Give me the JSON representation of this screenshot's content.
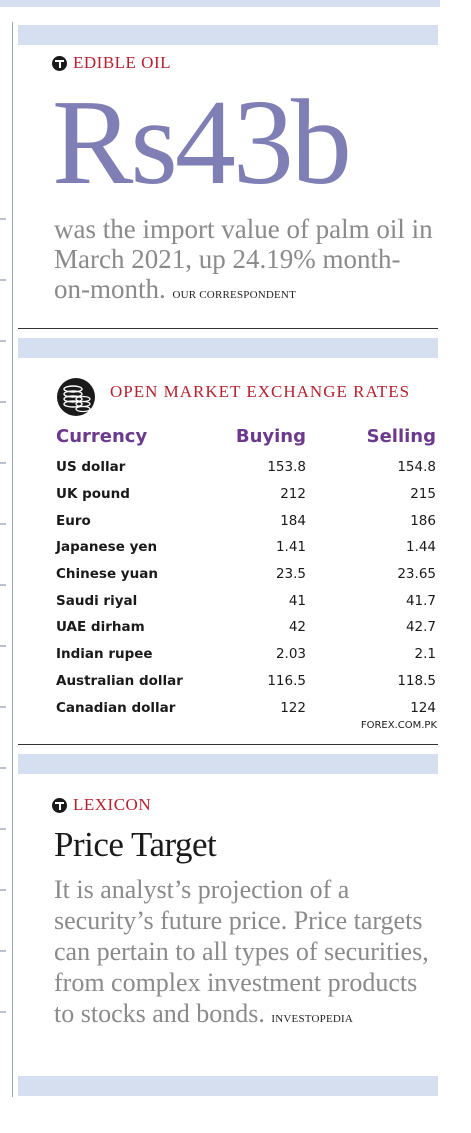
{
  "edible_oil": {
    "kicker": "EDIBLE OIL",
    "figure": "Rs43b",
    "text": "was the import value of palm oil in March 2021, up 24.19% month-on-month.",
    "credit": "OUR CORRESPONDENT"
  },
  "exchange": {
    "title": "OPEN MARKET EXCHANGE RATES",
    "headers": {
      "currency": "Currency",
      "buying": "Buying",
      "selling": "Selling"
    },
    "rows": [
      {
        "currency": "US dollar",
        "buying": "153.8",
        "selling": "154.8"
      },
      {
        "currency": "UK pound",
        "buying": "212",
        "selling": "215"
      },
      {
        "currency": "Euro",
        "buying": "184",
        "selling": "186"
      },
      {
        "currency": "Japanese yen",
        "buying": "1.41",
        "selling": "1.44"
      },
      {
        "currency": "Chinese yuan",
        "buying": "23.5",
        "selling": "23.65"
      },
      {
        "currency": "Saudi riyal",
        "buying": "41",
        "selling": "41.7"
      },
      {
        "currency": "UAE dirham",
        "buying": "42",
        "selling": "42.7"
      },
      {
        "currency": "Indian rupee",
        "buying": "2.03",
        "selling": "2.1"
      },
      {
        "currency": "Australian dollar",
        "buying": "116.5",
        "selling": "118.5"
      },
      {
        "currency": "Canadian dollar",
        "buying": "122",
        "selling": "124"
      }
    ],
    "source": "FOREX.COM.PK"
  },
  "lexicon": {
    "kicker": "LEXICON",
    "title": "Price Target",
    "text": "It is analyst’s projection of a security’s future price. Price targets can pertain to all types of securities, from complex investment products to stocks and bonds.",
    "credit": "INVESTOPEDIA"
  },
  "colors": {
    "accent_red": "#b5212f",
    "figure_purple": "#7f7fb5",
    "header_purple": "#6b3a8c",
    "band_blue": "#d5dff0"
  }
}
